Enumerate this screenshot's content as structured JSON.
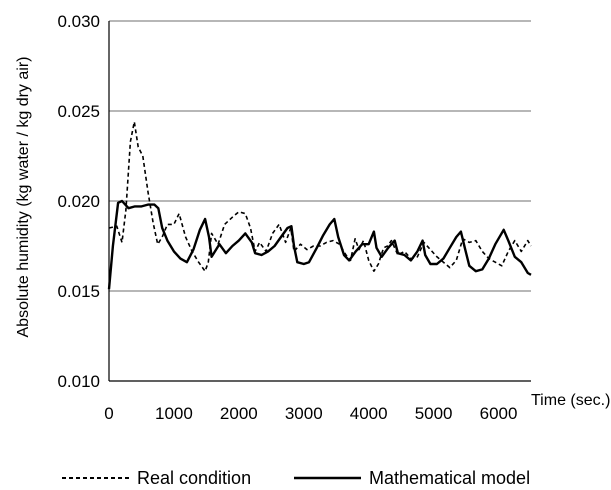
{
  "chart_data": {
    "type": "line",
    "xlabel": "Time (sec.)",
    "ylabel": "Absolute humidity (kg water / kg dry air)",
    "xlim": [
      0,
      6500
    ],
    "ylim": [
      0.01,
      0.03
    ],
    "x_ticks": [
      "0",
      "1000",
      "2000",
      "3000",
      "4000",
      "5000",
      "6000"
    ],
    "x_tick_values": [
      0,
      1000,
      2000,
      3000,
      4000,
      5000,
      6000
    ],
    "y_ticks": [
      "0.030",
      "0.025",
      "0.020",
      "0.015",
      "0.010"
    ],
    "y_tick_values": [
      0.03,
      0.025,
      0.02,
      0.015,
      0.01
    ],
    "grid": "horizontal",
    "legend_position": "bottom",
    "series": [
      {
        "name": "Real condition",
        "style": "dashed",
        "color": "#000000",
        "points": [
          [
            0,
            0.0185
          ],
          [
            120,
            0.0186
          ],
          [
            200,
            0.0177
          ],
          [
            260,
            0.0195
          ],
          [
            330,
            0.0233
          ],
          [
            390,
            0.0244
          ],
          [
            450,
            0.023
          ],
          [
            520,
            0.0225
          ],
          [
            600,
            0.0205
          ],
          [
            680,
            0.0188
          ],
          [
            750,
            0.0176
          ],
          [
            820,
            0.018
          ],
          [
            900,
            0.0187
          ],
          [
            1000,
            0.0187
          ],
          [
            1080,
            0.0193
          ],
          [
            1180,
            0.018
          ],
          [
            1280,
            0.0172
          ],
          [
            1380,
            0.0166
          ],
          [
            1480,
            0.0161
          ],
          [
            1530,
            0.0166
          ],
          [
            1580,
            0.0182
          ],
          [
            1680,
            0.0176
          ],
          [
            1780,
            0.0187
          ],
          [
            1900,
            0.0191
          ],
          [
            2000,
            0.0194
          ],
          [
            2100,
            0.0193
          ],
          [
            2180,
            0.0185
          ],
          [
            2250,
            0.0172
          ],
          [
            2320,
            0.0177
          ],
          [
            2420,
            0.0172
          ],
          [
            2520,
            0.0182
          ],
          [
            2620,
            0.0187
          ],
          [
            2720,
            0.0177
          ],
          [
            2800,
            0.0185
          ],
          [
            2850,
            0.0172
          ],
          [
            2950,
            0.0176
          ],
          [
            3050,
            0.0173
          ],
          [
            3150,
            0.0175
          ],
          [
            3250,
            0.0175
          ],
          [
            3350,
            0.0177
          ],
          [
            3450,
            0.0178
          ],
          [
            3550,
            0.0176
          ],
          [
            3650,
            0.017
          ],
          [
            3720,
            0.0167
          ],
          [
            3790,
            0.0179
          ],
          [
            3850,
            0.0173
          ],
          [
            3920,
            0.0178
          ],
          [
            4000,
            0.0167
          ],
          [
            4080,
            0.0161
          ],
          [
            4150,
            0.0165
          ],
          [
            4230,
            0.0174
          ],
          [
            4290,
            0.0175
          ],
          [
            4350,
            0.0178
          ],
          [
            4450,
            0.017
          ],
          [
            4550,
            0.0172
          ],
          [
            4650,
            0.0168
          ],
          [
            4750,
            0.0169
          ],
          [
            4850,
            0.0177
          ],
          [
            4950,
            0.0173
          ],
          [
            5050,
            0.0169
          ],
          [
            5150,
            0.0166
          ],
          [
            5250,
            0.0163
          ],
          [
            5350,
            0.0167
          ],
          [
            5450,
            0.0179
          ],
          [
            5550,
            0.0177
          ],
          [
            5650,
            0.0178
          ],
          [
            5750,
            0.0172
          ],
          [
            5850,
            0.0168
          ],
          [
            5950,
            0.0166
          ],
          [
            6050,
            0.0164
          ],
          [
            6150,
            0.0172
          ],
          [
            6250,
            0.0178
          ],
          [
            6350,
            0.0172
          ],
          [
            6450,
            0.0178
          ],
          [
            6500,
            0.0175
          ]
        ]
      },
      {
        "name": "Mathematical model",
        "style": "solid",
        "color": "#000000",
        "points": [
          [
            0,
            0.0151
          ],
          [
            60,
            0.0175
          ],
          [
            140,
            0.0199
          ],
          [
            200,
            0.02
          ],
          [
            300,
            0.0196
          ],
          [
            400,
            0.0197
          ],
          [
            500,
            0.0197
          ],
          [
            600,
            0.0198
          ],
          [
            700,
            0.0198
          ],
          [
            760,
            0.0196
          ],
          [
            820,
            0.0185
          ],
          [
            900,
            0.0178
          ],
          [
            1000,
            0.0172
          ],
          [
            1100,
            0.0168
          ],
          [
            1200,
            0.0166
          ],
          [
            1300,
            0.0173
          ],
          [
            1400,
            0.0184
          ],
          [
            1480,
            0.019
          ],
          [
            1540,
            0.018
          ],
          [
            1580,
            0.0169
          ],
          [
            1700,
            0.0176
          ],
          [
            1800,
            0.0171
          ],
          [
            1900,
            0.0175
          ],
          [
            2000,
            0.0178
          ],
          [
            2100,
            0.0182
          ],
          [
            2200,
            0.0177
          ],
          [
            2250,
            0.0171
          ],
          [
            2350,
            0.017
          ],
          [
            2450,
            0.0172
          ],
          [
            2550,
            0.0175
          ],
          [
            2650,
            0.018
          ],
          [
            2750,
            0.0185
          ],
          [
            2810,
            0.0186
          ],
          [
            2850,
            0.0175
          ],
          [
            2900,
            0.0166
          ],
          [
            3000,
            0.0165
          ],
          [
            3080,
            0.0166
          ],
          [
            3200,
            0.0174
          ],
          [
            3300,
            0.0181
          ],
          [
            3400,
            0.0187
          ],
          [
            3470,
            0.019
          ],
          [
            3530,
            0.018
          ],
          [
            3620,
            0.017
          ],
          [
            3700,
            0.0167
          ],
          [
            3800,
            0.0172
          ],
          [
            3900,
            0.0176
          ],
          [
            4000,
            0.0176
          ],
          [
            4080,
            0.0183
          ],
          [
            4120,
            0.0174
          ],
          [
            4200,
            0.0169
          ],
          [
            4300,
            0.0174
          ],
          [
            4400,
            0.0178
          ],
          [
            4450,
            0.0171
          ],
          [
            4550,
            0.017
          ],
          [
            4650,
            0.0167
          ],
          [
            4750,
            0.0172
          ],
          [
            4830,
            0.0178
          ],
          [
            4870,
            0.017
          ],
          [
            4950,
            0.0165
          ],
          [
            5050,
            0.0165
          ],
          [
            5150,
            0.0168
          ],
          [
            5250,
            0.0174
          ],
          [
            5350,
            0.018
          ],
          [
            5420,
            0.0183
          ],
          [
            5480,
            0.0174
          ],
          [
            5550,
            0.0164
          ],
          [
            5650,
            0.0161
          ],
          [
            5750,
            0.0162
          ],
          [
            5850,
            0.0168
          ],
          [
            5950,
            0.0176
          ],
          [
            6080,
            0.0184
          ],
          [
            6150,
            0.0178
          ],
          [
            6250,
            0.0169
          ],
          [
            6350,
            0.0166
          ],
          [
            6450,
            0.016
          ],
          [
            6500,
            0.0159
          ]
        ]
      }
    ]
  }
}
